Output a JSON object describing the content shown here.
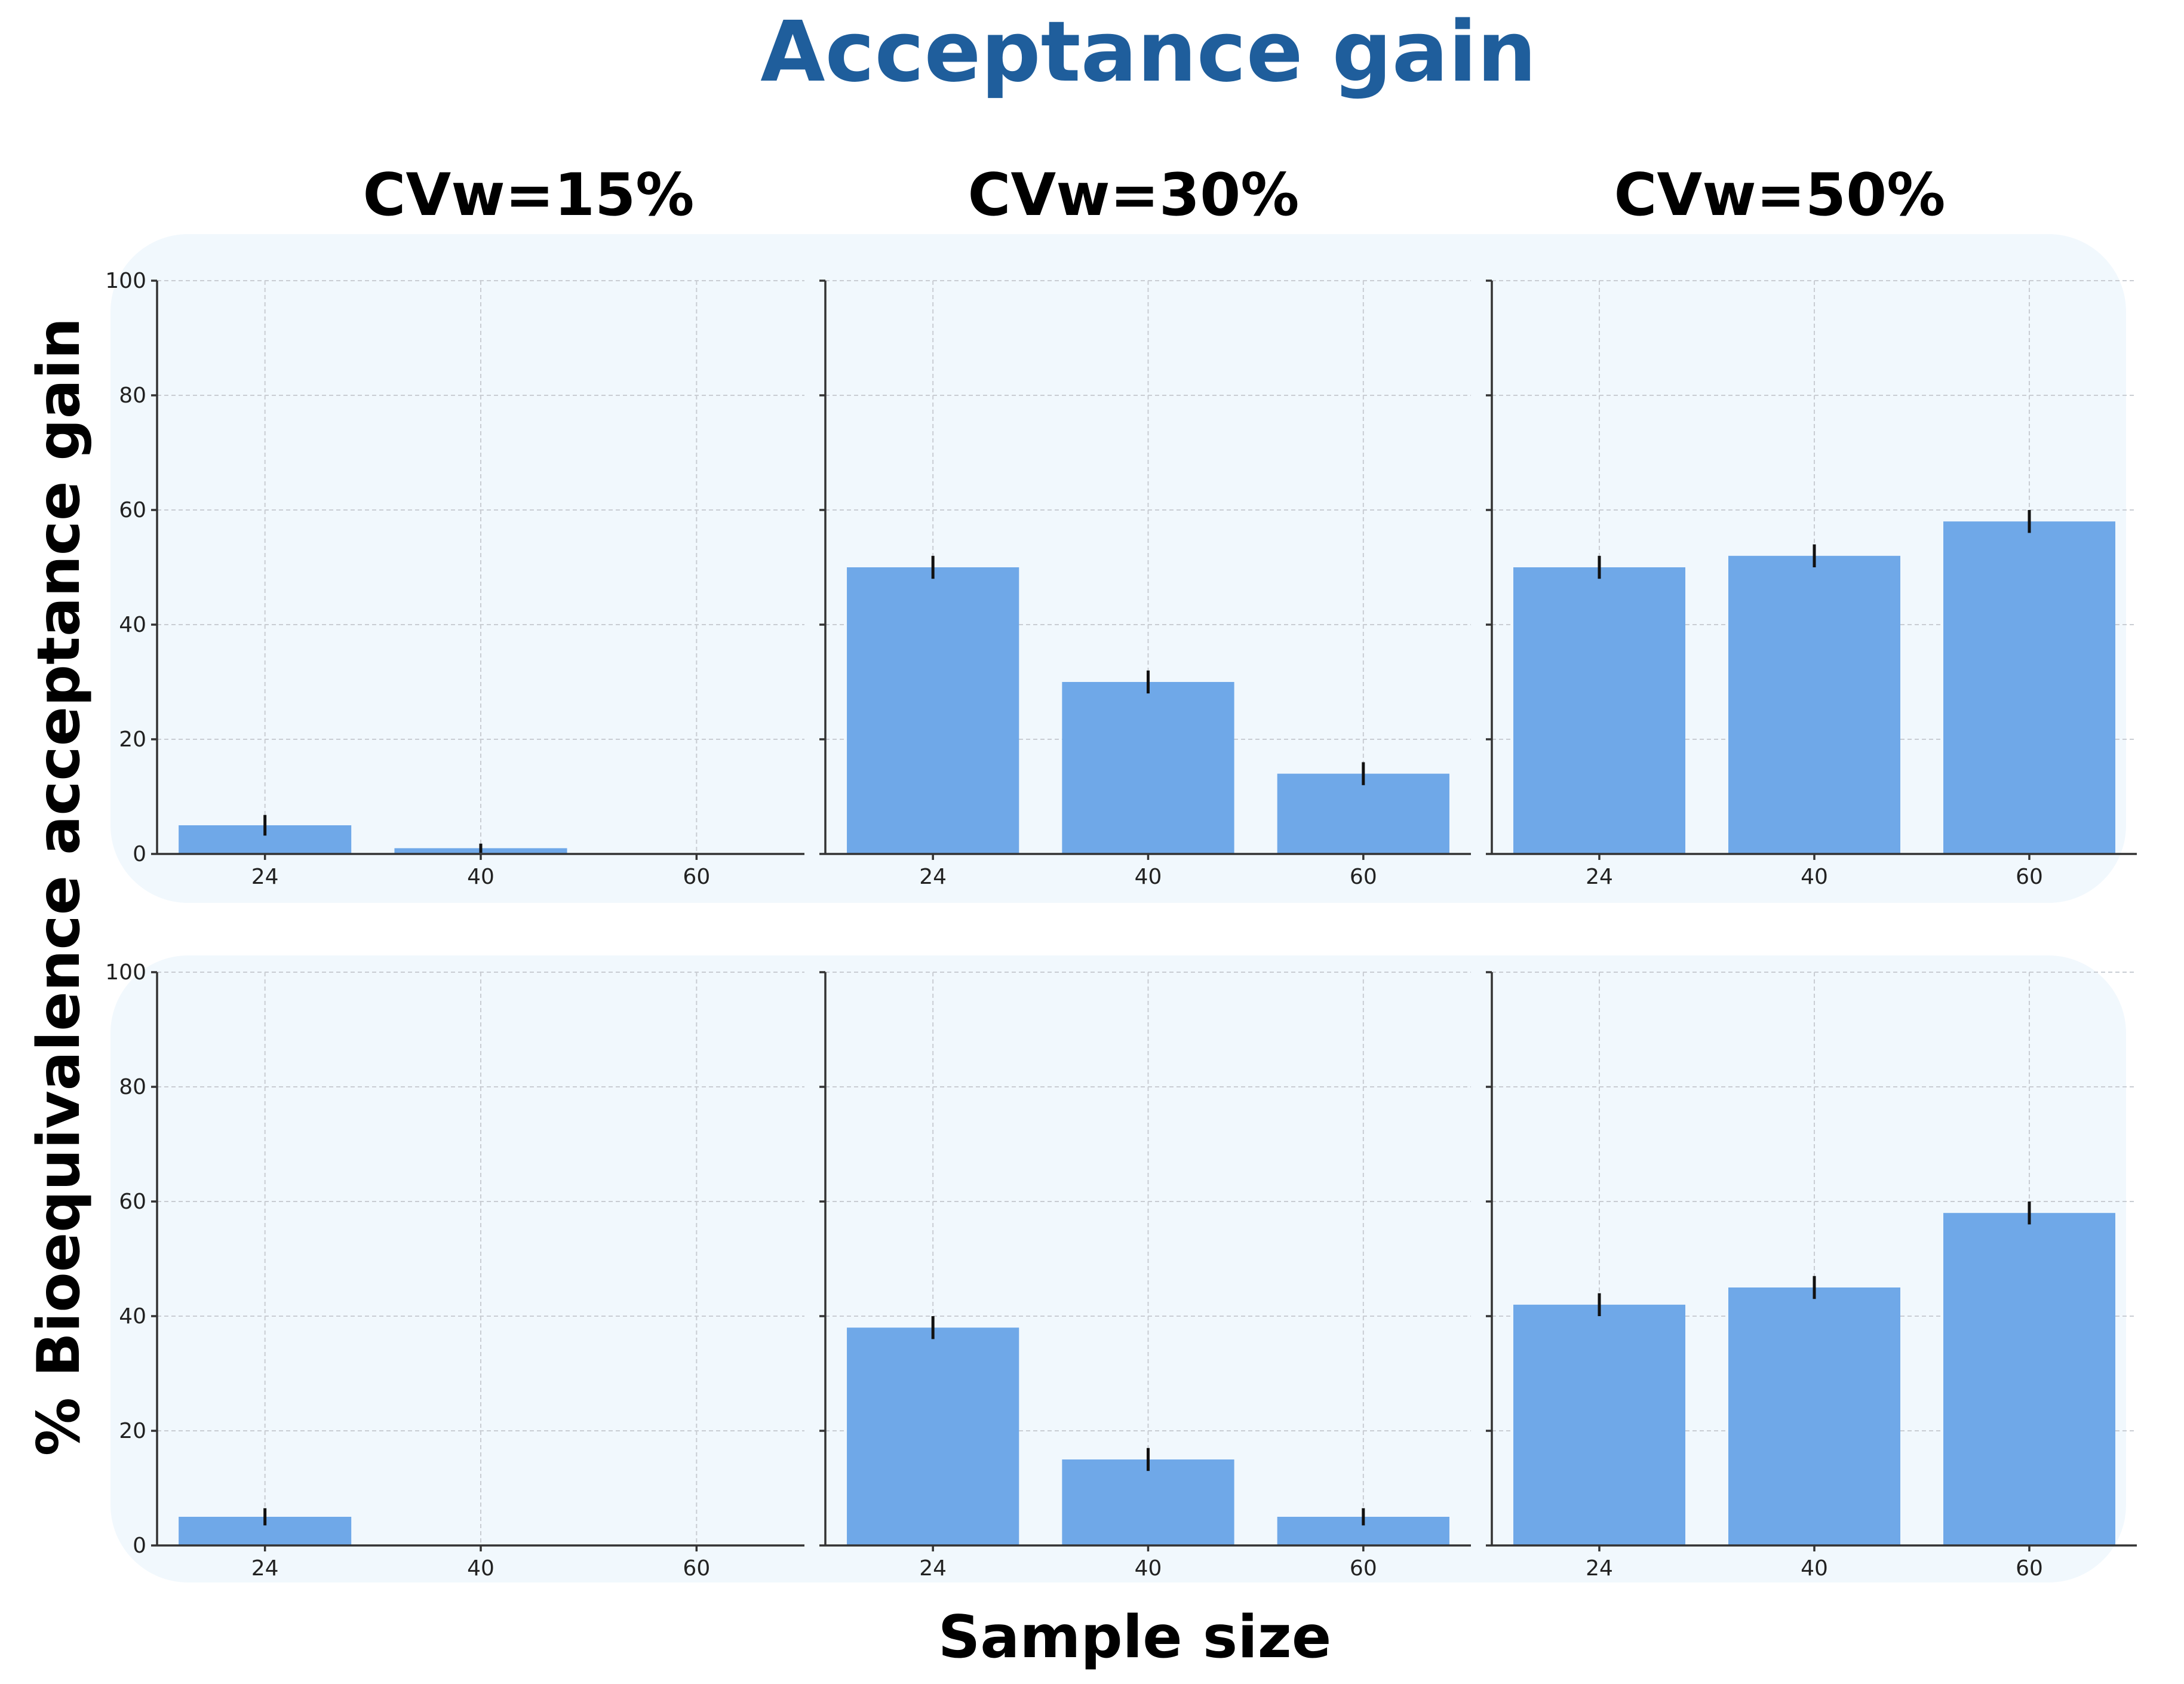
{
  "chart_data": {
    "type": "bar",
    "title": "Acceptance gain",
    "ylabel": "% Bioequivalence acceptance gain",
    "xlabel": "Sample size",
    "ylim": [
      0,
      100
    ],
    "yticks": [
      "0",
      "20",
      "40",
      "60",
      "80",
      "100"
    ],
    "categories": [
      "24",
      "40",
      "60"
    ],
    "column_titles": [
      "CVw=15%",
      "CVw=30%",
      "CVw=50%"
    ],
    "grid": true,
    "panels": [
      {
        "row": 1,
        "column": "CVw=15%",
        "values": [
          5,
          1,
          0
        ],
        "errors": [
          1.8,
          0.8,
          0
        ]
      },
      {
        "row": 1,
        "column": "CVw=30%",
        "values": [
          50,
          30,
          14
        ],
        "errors": [
          2,
          2,
          2
        ]
      },
      {
        "row": 1,
        "column": "CVw=50%",
        "values": [
          50,
          52,
          58
        ],
        "errors": [
          2,
          2,
          2
        ]
      },
      {
        "row": 2,
        "column": "CVw=15%",
        "values": [
          5,
          0,
          0
        ],
        "errors": [
          1.5,
          0,
          0
        ]
      },
      {
        "row": 2,
        "column": "CVw=30%",
        "values": [
          38,
          15,
          5
        ],
        "errors": [
          2,
          2,
          1.5
        ]
      },
      {
        "row": 2,
        "column": "CVw=50%",
        "values": [
          42,
          45,
          58
        ],
        "errors": [
          2,
          2,
          2
        ]
      }
    ]
  },
  "colors": {
    "bar": "#6fa8e8",
    "title": "#1f5e9c",
    "panel_background": "#f1f8fd"
  }
}
